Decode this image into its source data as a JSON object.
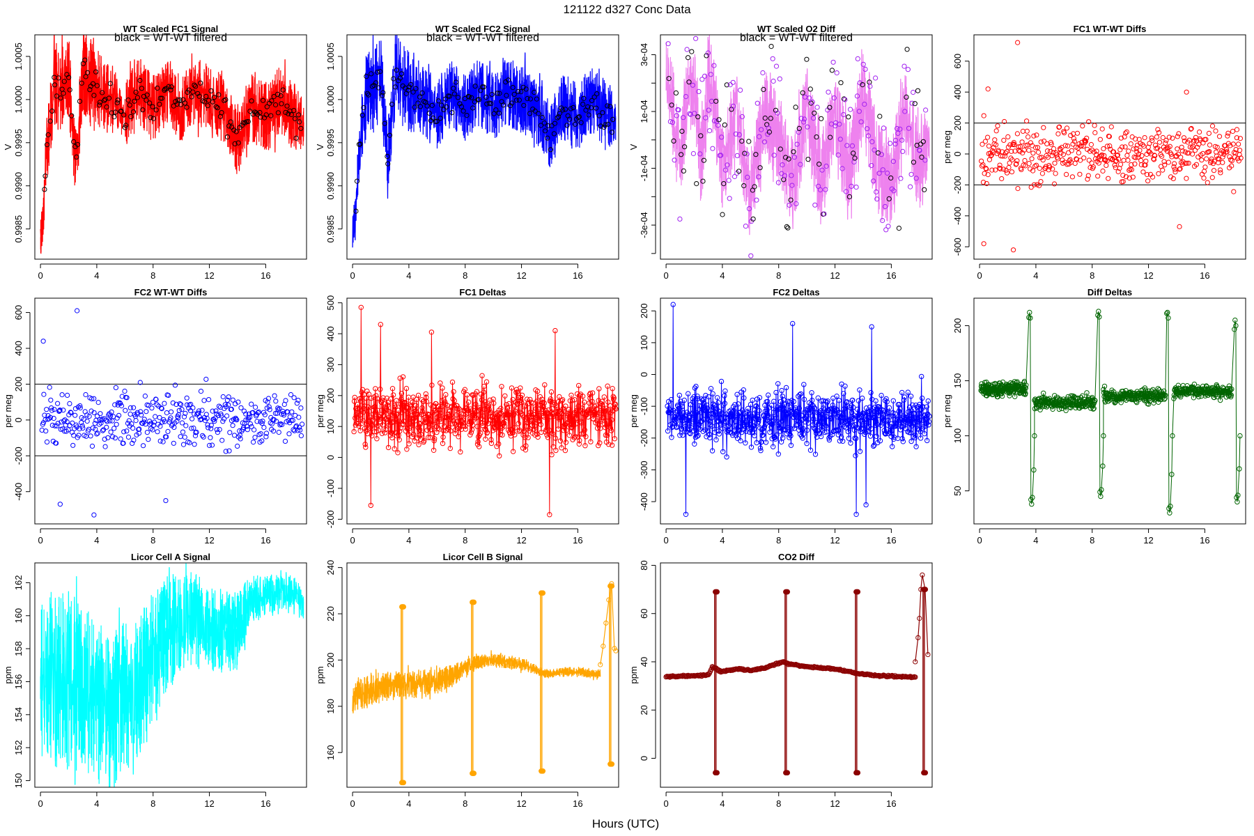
{
  "figure": {
    "title": "121122    d327    Conc Data",
    "xlabel": "Hours (UTC)"
  },
  "chart_data": [
    {
      "id": "p1",
      "type": "line",
      "title": "WT Scaled FC1 Signal",
      "note": "black = WT-WT filtered",
      "ylabel": "V",
      "xlim": [
        -0.4,
        18.9
      ],
      "ylim": [
        0.99815,
        1.00075
      ],
      "xticks": [
        0,
        4,
        8,
        12,
        16
      ],
      "xtick_labels": [
        "0",
        "4",
        "8",
        "12",
        "16"
      ],
      "yticks": [
        0.9985,
        0.999,
        0.9995,
        1.0,
        1.0005
      ],
      "ytick_labels": [
        "0.9985",
        "0.9990",
        "0.9995",
        "1.0000",
        "1.0005"
      ],
      "color": "#ff0000",
      "point_color": "#000000",
      "series": {
        "x": [
          0,
          0.5,
          1,
          1.5,
          2,
          2.5,
          3,
          3.5,
          4,
          5,
          6,
          7,
          8,
          9,
          10,
          11,
          12,
          13,
          14,
          15,
          16,
          17,
          18,
          18.7
        ],
        "y": [
          0.9983,
          0.9995,
          1.0002,
          1.0001,
          1.0003,
          0.9992,
          1.0003,
          1.0002,
          1.0001,
          1.0,
          0.9998,
          1.0001,
          0.9999,
          1.0001,
          0.9999,
          1.0001,
          1.0,
          0.9999,
          0.9995,
          0.9999,
          0.9998,
          1.0,
          0.9998,
          0.9997
        ],
        "spread": [
          0.0003,
          0.0004,
          0.0005,
          0.0005,
          0.0005,
          0.0004,
          0.0005,
          0.0005,
          0.0005,
          0.0004,
          0.0004,
          0.0004,
          0.0004,
          0.0004,
          0.0004,
          0.0004,
          0.0004,
          0.0004,
          0.0004,
          0.0004,
          0.0004,
          0.0004,
          0.0004,
          0.0003
        ]
      },
      "points": {
        "x_range": [
          0.2,
          18.6
        ],
        "y_center": 1.0001,
        "y_spread": 0.0002,
        "count": 160
      }
    },
    {
      "id": "p2",
      "type": "line",
      "title": "WT Scaled FC2 Signal",
      "note": "black = WT-WT filtered",
      "ylabel": "V",
      "xlim": [
        -0.4,
        18.9
      ],
      "ylim": [
        0.99815,
        1.00075
      ],
      "xticks": [
        0,
        4,
        8,
        12,
        16
      ],
      "xtick_labels": [
        "0",
        "4",
        "8",
        "12",
        "16"
      ],
      "yticks": [
        0.9985,
        0.999,
        0.9995,
        1.0,
        1.0005
      ],
      "ytick_labels": [
        "0.9985",
        "0.9990",
        "0.9995",
        "1.0000",
        "1.0005"
      ],
      "color": "#0000ff",
      "point_color": "#000000",
      "series": {
        "x": [
          0,
          0.5,
          1,
          1.5,
          2,
          2.5,
          3,
          3.5,
          4,
          5,
          6,
          7,
          8,
          9,
          10,
          11,
          12,
          13,
          14,
          15,
          16,
          17,
          18,
          18.7
        ],
        "y": [
          0.9983,
          0.9994,
          1.0001,
          1.0001,
          1.0003,
          0.9993,
          1.0003,
          1.0002,
          1.0001,
          1.0,
          0.9998,
          1.0001,
          0.9999,
          1.0001,
          0.9999,
          1.0001,
          1.0,
          0.9999,
          0.9996,
          0.9999,
          0.9998,
          1.0,
          0.9998,
          0.9998
        ],
        "spread": [
          0.0003,
          0.0004,
          0.0005,
          0.0005,
          0.0005,
          0.0004,
          0.0005,
          0.0005,
          0.0005,
          0.0004,
          0.0004,
          0.0004,
          0.0004,
          0.0004,
          0.0004,
          0.0004,
          0.0004,
          0.0004,
          0.0004,
          0.0004,
          0.0004,
          0.0004,
          0.0004,
          0.0003
        ]
      },
      "points": {
        "x_range": [
          0.2,
          18.6
        ],
        "y_center": 1.0001,
        "y_spread": 0.0002,
        "count": 160
      }
    },
    {
      "id": "p3",
      "type": "line",
      "title": "WT Scaled O2 Diff",
      "note": "black = WT-WT filtered",
      "ylabel": "V",
      "xlim": [
        -0.4,
        18.9
      ],
      "ylim": [
        -0.00042,
        0.00037
      ],
      "xticks": [
        0,
        4,
        8,
        12,
        16
      ],
      "xtick_labels": [
        "0",
        "4",
        "8",
        "12",
        "16"
      ],
      "yticks": [
        -0.0003,
        -0.0001,
        0.0001,
        0.0003
      ],
      "ytick_labels": [
        "-3e-04",
        "-1e-04",
        "1e-04",
        "3e-04"
      ],
      "minor_yticks": [
        -0.0004,
        -0.0002,
        0,
        0.0002
      ],
      "color": "#ee82ee",
      "point_color": "#a020f0",
      "series": {
        "x": [
          0,
          0.5,
          1,
          1.5,
          2,
          2.5,
          3,
          3.5,
          4,
          5,
          6,
          7,
          8,
          9,
          10,
          11,
          12,
          13,
          14,
          15,
          16,
          17,
          18,
          18.7
        ],
        "y": [
          0.00025,
          0.0001,
          -0.0001,
          0.00018,
          0.0002,
          -0.0001,
          0.0002,
          0.00012,
          -0.0001,
          0.0001,
          -0.0002,
          0.0001,
          0.0,
          -0.00015,
          0.0001,
          -0.00015,
          0.0001,
          -0.0001,
          0.00015,
          -0.0001,
          -0.00015,
          0.0001,
          -0.0001,
          0.0
        ],
        "spread": [
          0.0001,
          0.00016,
          0.00016,
          0.00016,
          0.00016,
          0.00016,
          0.00016,
          0.00016,
          0.00016,
          0.00016,
          0.00016,
          0.00016,
          0.00016,
          0.00016,
          0.00016,
          0.00016,
          0.00016,
          0.00016,
          0.00016,
          0.00016,
          0.00016,
          0.00016,
          0.00016,
          0.0001
        ]
      },
      "points": {
        "x_range": [
          0.1,
          18.5
        ],
        "y_center": 0.0,
        "y_spread": 0.0003,
        "count": 260
      }
    },
    {
      "id": "p4",
      "type": "scatter",
      "title": "FC1 WT-WT Diffs",
      "ylabel": "per meg",
      "xlim": [
        -0.4,
        18.9
      ],
      "ylim": [
        -680,
        770
      ],
      "xticks": [
        0,
        4,
        8,
        12,
        16
      ],
      "xtick_labels": [
        "0",
        "4",
        "8",
        "12",
        "16"
      ],
      "yticks": [
        -600,
        -400,
        -200,
        0,
        200,
        400,
        600
      ],
      "ytick_labels": [
        "-600",
        "-400",
        "-200",
        "0",
        "200",
        "400",
        "600"
      ],
      "hlines": [
        200,
        -200
      ],
      "color": "#ff0000",
      "points": {
        "x_range": [
          0.1,
          18.6
        ],
        "y_center": 0,
        "y_spread": 180,
        "count": 460
      },
      "outliers": [
        {
          "x": 2.7,
          "y": 720
        },
        {
          "x": 2.4,
          "y": -620
        },
        {
          "x": 0.3,
          "y": -580
        },
        {
          "x": 0.6,
          "y": 420
        },
        {
          "x": 14.2,
          "y": -470
        },
        {
          "x": 14.7,
          "y": 400
        }
      ]
    },
    {
      "id": "p5",
      "type": "scatter",
      "title": "FC2 WT-WT Diffs",
      "ylabel": "per meg",
      "xlim": [
        -0.4,
        18.9
      ],
      "ylim": [
        -580,
        680
      ],
      "xticks": [
        0,
        4,
        8,
        12,
        16
      ],
      "xtick_labels": [
        "0",
        "4",
        "8",
        "12",
        "16"
      ],
      "yticks": [
        -400,
        -200,
        0,
        200,
        400,
        600
      ],
      "ytick_labels": [
        "-400",
        "-200",
        "0",
        "200",
        "400",
        "600"
      ],
      "hlines": [
        200,
        -200
      ],
      "color": "#0000ff",
      "points": {
        "x_range": [
          0.1,
          18.6
        ],
        "y_center": 0,
        "y_spread": 160,
        "count": 420
      },
      "outliers": [
        {
          "x": 2.6,
          "y": 610
        },
        {
          "x": 3.8,
          "y": -530
        },
        {
          "x": 1.4,
          "y": -470
        },
        {
          "x": 8.9,
          "y": -450
        },
        {
          "x": 0.2,
          "y": 440
        }
      ]
    },
    {
      "id": "p6",
      "type": "line",
      "title": "FC1 Deltas",
      "ylabel": "per meg",
      "xlim": [
        -0.4,
        18.9
      ],
      "ylim": [
        -215,
        515
      ],
      "xticks": [
        0,
        4,
        8,
        12,
        16
      ],
      "xtick_labels": [
        "0",
        "4",
        "8",
        "12",
        "16"
      ],
      "yticks": [
        -200,
        -100,
        0,
        100,
        200,
        300,
        400,
        500
      ],
      "ytick_labels": [
        "-200",
        "-100",
        "0",
        "100",
        "200",
        "300",
        "400",
        "500"
      ],
      "color": "#ff0000",
      "markers": true,
      "series": {
        "x_range": [
          0.1,
          18.7
        ],
        "y_center": 130,
        "y_spread": 120,
        "count": 700
      },
      "spikes": [
        {
          "x": 0.6,
          "y": 485
        },
        {
          "x": 1.3,
          "y": -155
        },
        {
          "x": 2.0,
          "y": 430
        },
        {
          "x": 5.6,
          "y": 405
        },
        {
          "x": 14.0,
          "y": -185
        },
        {
          "x": 14.4,
          "y": 410
        }
      ]
    },
    {
      "id": "p7",
      "type": "line",
      "title": "FC2 Deltas",
      "ylabel": "per meg",
      "xlim": [
        -0.4,
        18.9
      ],
      "ylim": [
        -470,
        240
      ],
      "xticks": [
        0,
        4,
        8,
        12,
        16
      ],
      "xtick_labels": [
        "0",
        "4",
        "8",
        "12",
        "16"
      ],
      "yticks": [
        -400,
        -300,
        -200,
        -100,
        0,
        100,
        200
      ],
      "ytick_labels": [
        "-400",
        "-300",
        "-200",
        "-100",
        "0",
        "100",
        "200"
      ],
      "color": "#0000ff",
      "markers": true,
      "series": {
        "x_range": [
          0.1,
          18.7
        ],
        "y_center": -140,
        "y_spread": 110,
        "count": 700
      },
      "spikes": [
        {
          "x": 0.5,
          "y": 220
        },
        {
          "x": 1.4,
          "y": -440
        },
        {
          "x": 9.0,
          "y": 160
        },
        {
          "x": 13.5,
          "y": -440
        },
        {
          "x": 14.2,
          "y": -410
        },
        {
          "x": 14.6,
          "y": 150
        }
      ]
    },
    {
      "id": "p8",
      "type": "line",
      "title": "Diff Deltas",
      "ylabel": "per meg",
      "xlim": [
        -0.4,
        18.9
      ],
      "ylim": [
        20,
        225
      ],
      "xticks": [
        0,
        4,
        8,
        12,
        16
      ],
      "xtick_labels": [
        "0",
        "4",
        "8",
        "12",
        "16"
      ],
      "yticks": [
        50,
        100,
        150,
        200
      ],
      "ytick_labels": [
        "50",
        "100",
        "150",
        "200"
      ],
      "color": "#006400",
      "markers": true,
      "baseline": [
        {
          "x_from": 0.1,
          "x_to": 3.3,
          "y": 143
        },
        {
          "x_from": 3.9,
          "x_to": 8.2,
          "y": 130
        },
        {
          "x_from": 8.8,
          "x_to": 13.2,
          "y": 136
        },
        {
          "x_from": 13.8,
          "x_to": 17.9,
          "y": 140
        }
      ],
      "events": [
        {
          "x": 3.6,
          "low": 38,
          "high": 212
        },
        {
          "x": 8.5,
          "low": 45,
          "high": 213
        },
        {
          "x": 13.4,
          "low": 30,
          "high": 212
        },
        {
          "x": 18.2,
          "low": 40,
          "high": 205
        }
      ]
    },
    {
      "id": "p9",
      "type": "line",
      "title": "Licor Cell A Signal",
      "ylabel": "ppm",
      "xlim": [
        -0.4,
        18.9
      ],
      "ylim": [
        149.6,
        163.2
      ],
      "xticks": [
        0,
        4,
        8,
        12,
        16
      ],
      "xtick_labels": [
        "0",
        "4",
        "8",
        "12",
        "16"
      ],
      "yticks": [
        150,
        152,
        154,
        156,
        158,
        160,
        162
      ],
      "ytick_labels": [
        "150",
        "152",
        "154",
        "156",
        "158",
        "160",
        "162"
      ],
      "color": "#00ffff",
      "series": {
        "x": [
          0,
          1,
          2,
          3,
          4,
          5,
          6,
          7,
          8,
          9,
          10,
          11,
          12,
          13,
          14,
          15,
          16,
          17,
          18,
          18.7
        ],
        "y": [
          156,
          156.3,
          156,
          155.6,
          154.8,
          154.4,
          154.9,
          155.6,
          157.5,
          158.8,
          159.5,
          159.7,
          159.2,
          158.9,
          159.1,
          161.0,
          161.2,
          161.4,
          161.5,
          160.5
        ],
        "spread": [
          5,
          5.5,
          5.5,
          5,
          5,
          4.8,
          4.6,
          4.2,
          4,
          3.5,
          3,
          3,
          2.6,
          2.4,
          2.4,
          1.5,
          1.2,
          1.1,
          1.1,
          0.8
        ]
      }
    },
    {
      "id": "p10",
      "type": "line",
      "title": "Licor Cell B Signal",
      "ylabel": "ppm",
      "xlim": [
        -0.4,
        18.9
      ],
      "ylim": [
        145,
        242
      ],
      "xticks": [
        0,
        4,
        8,
        12,
        16
      ],
      "xtick_labels": [
        "0",
        "4",
        "8",
        "12",
        "16"
      ],
      "yticks": [
        160,
        180,
        200,
        220,
        240
      ],
      "ytick_labels": [
        "160",
        "180",
        "200",
        "220",
        "240"
      ],
      "color": "#ffa500",
      "markers": true,
      "series": {
        "x": [
          0,
          1,
          2,
          3,
          3.3,
          3.9,
          5,
          6,
          7,
          8,
          8.3,
          8.8,
          10,
          11,
          12,
          13,
          13.3,
          13.8,
          15,
          16,
          17,
          17.6
        ],
        "y": [
          184,
          186,
          188,
          189,
          190,
          189,
          190,
          191,
          193,
          196,
          197,
          199,
          200,
          199,
          198,
          196,
          195,
          194,
          195,
          195,
          194,
          194
        ],
        "spread": [
          7,
          7,
          7,
          6,
          6,
          6,
          6,
          6,
          5,
          4,
          4,
          3,
          3,
          3,
          3,
          2,
          2,
          2,
          2,
          2,
          2,
          2
        ]
      },
      "events": [
        {
          "x": 3.5,
          "low": 147,
          "high": 223
        },
        {
          "x": 8.5,
          "low": 151,
          "high": 225
        },
        {
          "x": 13.4,
          "low": 152,
          "high": 229
        },
        {
          "x": 18.3,
          "low": 155,
          "high": 232
        }
      ],
      "tail": {
        "x": [
          17.6,
          17.8,
          18.0,
          18.2,
          18.4,
          18.6,
          18.7
        ],
        "y": [
          198,
          206,
          216,
          226,
          233,
          205,
          204
        ]
      }
    },
    {
      "id": "p11",
      "type": "line",
      "title": "CO2 Diff",
      "ylabel": "ppm",
      "xlim": [
        -0.4,
        18.9
      ],
      "ylim": [
        -12,
        81
      ],
      "xticks": [
        0,
        4,
        8,
        12,
        16
      ],
      "xtick_labels": [
        "0",
        "4",
        "8",
        "12",
        "16"
      ],
      "yticks": [
        0,
        20,
        40,
        60,
        80
      ],
      "ytick_labels": [
        "0",
        "20",
        "40",
        "60",
        "80"
      ],
      "color": "#8b0000",
      "markers": true,
      "series": {
        "x": [
          0,
          1,
          2,
          3,
          3.3,
          3.9,
          5,
          6,
          7,
          8,
          8.3,
          8.8,
          10,
          11,
          12,
          13,
          13.3,
          13.8,
          15,
          16,
          17,
          17.7
        ],
        "y": [
          34,
          34,
          34.2,
          34.5,
          38,
          36,
          37,
          36.5,
          37.5,
          39.5,
          40,
          39,
          38,
          37.5,
          37,
          36,
          35.5,
          35,
          34.2,
          34,
          33.8,
          33.7
        ]
      },
      "events": [
        {
          "x": 3.5,
          "low": -6,
          "high": 69
        },
        {
          "x": 8.5,
          "low": -6,
          "high": 69
        },
        {
          "x": 13.5,
          "low": -6,
          "high": 69
        },
        {
          "x": 18.3,
          "low": -6,
          "high": 70
        }
      ],
      "tail": {
        "x": [
          17.7,
          17.9,
          18.0,
          18.1,
          18.2,
          18.4,
          18.6
        ],
        "y": [
          40,
          50,
          58,
          70,
          76,
          70,
          43
        ]
      }
    }
  ]
}
